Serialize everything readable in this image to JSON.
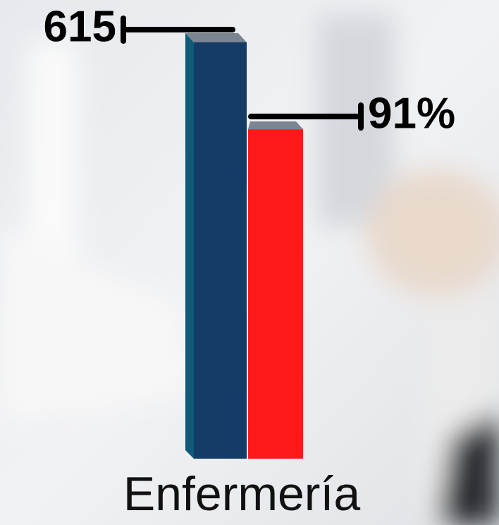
{
  "chart_data": {
    "type": "bar",
    "categories": [
      "Enfermería"
    ],
    "series": [
      {
        "color": "#143c66",
        "values": [
          615
        ],
        "value_labels": [
          "615"
        ]
      },
      {
        "color": "#ff1a1a",
        "values": [
          91
        ],
        "value_labels": [
          "91%"
        ],
        "axis": "y2"
      }
    ],
    "ylim": [
      0,
      615
    ],
    "y2lim": [
      0,
      115
    ]
  }
}
